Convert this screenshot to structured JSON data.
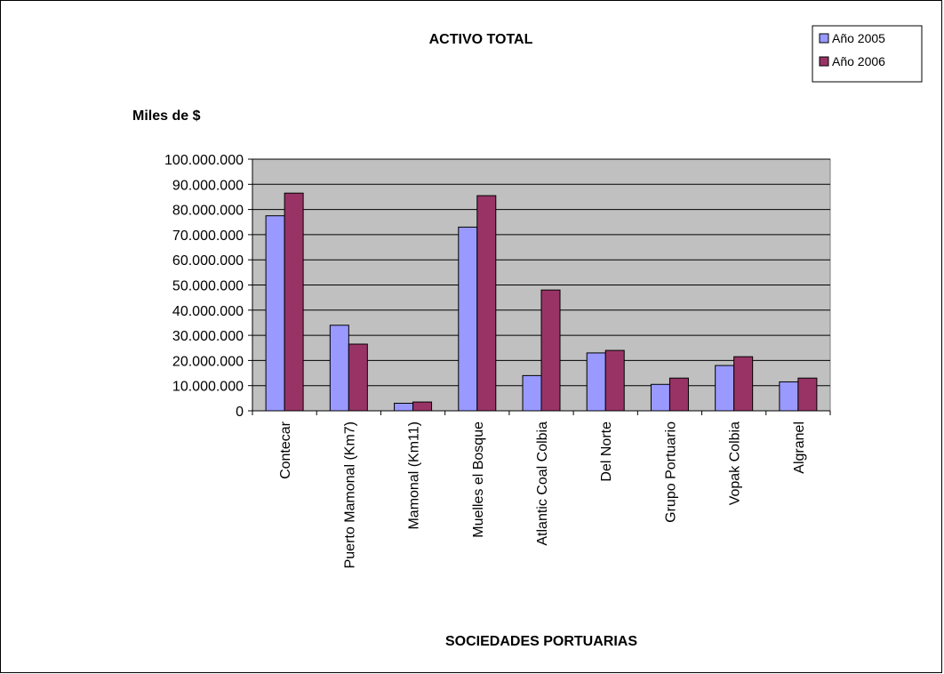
{
  "colors": {
    "plot_bg": "#c0c0c0",
    "series_2005": "#9999ff",
    "series_2006": "#993366",
    "grid": "#000000"
  },
  "chart_data": {
    "type": "bar",
    "title": "ACTIVO  TOTAL",
    "ylabel": "Miles de $",
    "xlabel": "SOCIEDADES  PORTUARIAS",
    "ylim": [
      0,
      100000000
    ],
    "yticks": [
      0,
      10000000,
      20000000,
      30000000,
      40000000,
      50000000,
      60000000,
      70000000,
      80000000,
      90000000,
      100000000
    ],
    "ytick_labels": [
      "0",
      "10.000.000",
      "20.000.000",
      "30.000.000",
      "40.000.000",
      "50.000.000",
      "60.000.000",
      "70.000.000",
      "80.000.000",
      "90.000.000",
      "100.000.000"
    ],
    "grid": true,
    "legend_position": "top-right",
    "categories": [
      "Contecar",
      "Puerto Mamonal (Km7)",
      "Mamonal (Km11)",
      "Muelles el Bosque",
      "Atlantic Coal  Colbia",
      "Del Norte",
      "Grupo Portuario",
      "Vopak  Colbia",
      "Algranel"
    ],
    "series": [
      {
        "name": "Año 2005",
        "values": [
          77500000,
          34000000,
          3000000,
          73000000,
          14000000,
          23000000,
          10500000,
          18000000,
          11500000
        ]
      },
      {
        "name": "Año 2006",
        "values": [
          86500000,
          26500000,
          3500000,
          85500000,
          48000000,
          24000000,
          13000000,
          21500000,
          13000000
        ]
      }
    ]
  }
}
